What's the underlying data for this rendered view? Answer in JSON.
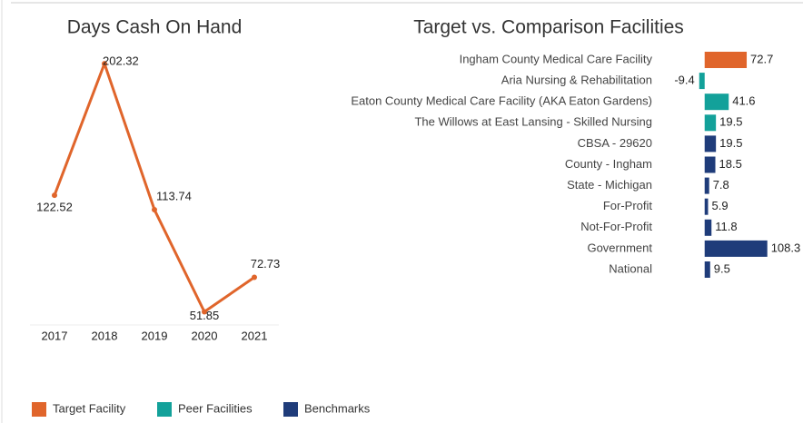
{
  "chart_data": [
    {
      "type": "line",
      "title": "Days Cash On Hand",
      "categories": [
        "2017",
        "2018",
        "2019",
        "2020",
        "2021"
      ],
      "values": [
        122.52,
        202.32,
        113.74,
        51.85,
        72.73
      ],
      "color": "#e0652b",
      "ylim": [
        40,
        220
      ]
    },
    {
      "type": "hbar",
      "title": "Target vs. Comparison Facilities",
      "categories": [
        "Ingham County Medical Care Facility",
        "Aria Nursing & Rehabilitation",
        "Eaton County Medical Care Facility (AKA Eaton Gardens)",
        "The Willows at East Lansing - Skilled Nursing",
        "CBSA - 29620",
        "County - Ingham",
        "State - Michigan",
        "For-Profit",
        "Not-For-Profit",
        "Government",
        "National"
      ],
      "series": [
        {
          "name": "Target Facility",
          "color": "#e0652b",
          "values": [
            72.7,
            null,
            null,
            null,
            null,
            null,
            null,
            null,
            null,
            null,
            null
          ]
        },
        {
          "name": "Peer Facilities",
          "color": "#13a19a",
          "values": [
            null,
            -9.4,
            41.6,
            19.5,
            null,
            null,
            null,
            null,
            null,
            null,
            null
          ]
        },
        {
          "name": "Benchmarks",
          "color": "#1f3c7a",
          "values": [
            null,
            null,
            null,
            null,
            19.5,
            18.5,
            7.8,
            5.9,
            11.8,
            108.3,
            9.5
          ]
        }
      ],
      "xlim": [
        -20,
        170
      ]
    }
  ]
}
